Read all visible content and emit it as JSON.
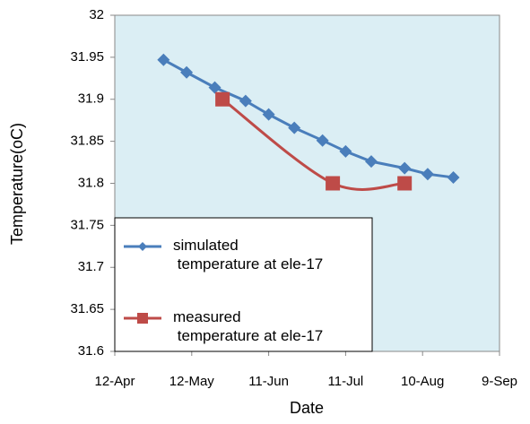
{
  "chart_data": {
    "type": "line",
    "x_label": "Date",
    "y_label": "Temperature(oC)",
    "xlim": [
      102,
      252
    ],
    "xticks": [
      {
        "value": 102,
        "label": "12-Apr"
      },
      {
        "value": 132,
        "label": "12-May"
      },
      {
        "value": 162,
        "label": "11-Jun"
      },
      {
        "value": 192,
        "label": "11-Jul"
      },
      {
        "value": 222,
        "label": "10-Aug"
      },
      {
        "value": 252,
        "label": "9-Sep"
      }
    ],
    "ylim": [
      31.6,
      32
    ],
    "yticks": [
      31.6,
      31.65,
      31.7,
      31.75,
      31.8,
      31.85,
      31.9,
      31.95,
      32
    ],
    "legend": "lower left",
    "series": [
      {
        "name": "simulated temperature at ele-17",
        "color": "#4a7ebb",
        "marker": "diamond",
        "smooth": false,
        "x": [
          121,
          130,
          141,
          153,
          162,
          172,
          183,
          192,
          202,
          215,
          224,
          234
        ],
        "values": [
          31.947,
          31.932,
          31.914,
          31.898,
          31.882,
          31.866,
          31.851,
          31.838,
          31.826,
          31.818,
          31.811,
          31.807
        ]
      },
      {
        "name": "measured temperature at ele-17",
        "color": "#be4b48",
        "marker": "square",
        "smooth": true,
        "x": [
          144,
          187,
          215
        ],
        "values": [
          31.9,
          31.8,
          31.8
        ]
      }
    ]
  }
}
